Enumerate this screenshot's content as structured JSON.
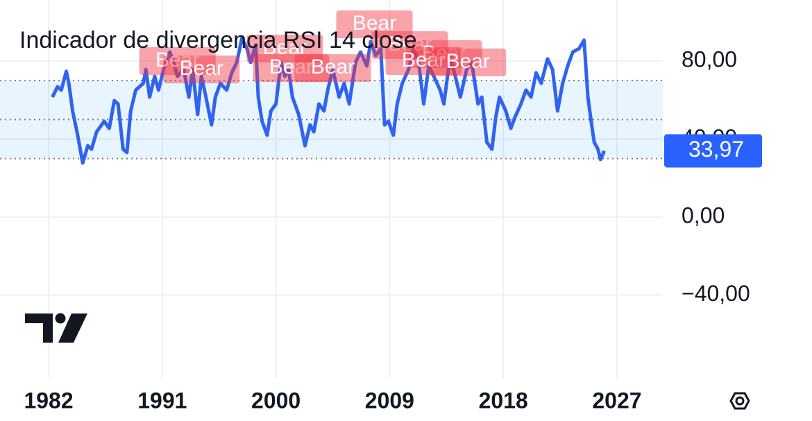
{
  "chart_data": {
    "type": "line",
    "title": "Indicador de divergencia RSI 14 close",
    "x": [
      1982.3,
      1982.7,
      1983.0,
      1983.4,
      1983.6,
      1983.9,
      1984.3,
      1984.7,
      1985.1,
      1985.4,
      1985.8,
      1986.4,
      1986.8,
      1987.2,
      1987.5,
      1987.9,
      1988.2,
      1988.5,
      1988.9,
      1989.5,
      1989.7,
      1990.0,
      1990.4,
      1990.7,
      1991.1,
      1991.6,
      1991.9,
      1992.2,
      1992.7,
      1993.1,
      1993.4,
      1993.8,
      1994.1,
      1994.4,
      1994.9,
      1995.2,
      1995.6,
      1996.1,
      1996.5,
      1996.9,
      1997.3,
      1997.7,
      1998.0,
      1998.4,
      1998.6,
      1998.9,
      1999.3,
      1999.6,
      2000.0,
      2000.4,
      2000.7,
      2001.0,
      2001.3,
      2001.8,
      2002.3,
      2002.7,
      2003.0,
      2003.4,
      2003.8,
      2004.1,
      2004.5,
      2005.0,
      2005.4,
      2005.8,
      2006.3,
      2006.7,
      2007.2,
      2007.5,
      2007.9,
      2008.3,
      2008.6,
      2008.9,
      2009.3,
      2009.6,
      2010.0,
      2010.5,
      2010.9,
      2011.3,
      2011.7,
      2012.1,
      2012.5,
      2013.0,
      2013.3,
      2013.8,
      2014.2,
      2014.6,
      2015.1,
      2015.5,
      2016.0,
      2016.3,
      2016.7,
      2017.1,
      2017.4,
      2017.7,
      2018.2,
      2018.6,
      2018.9,
      2019.4,
      2019.8,
      2020.2,
      2020.6,
      2021.0,
      2021.5,
      2021.9,
      2022.3,
      2022.7,
      2023.1,
      2023.5,
      2024.0,
      2024.4,
      2024.7,
      2025.0,
      2025.2,
      2025.5,
      2025.7,
      2026.0
    ],
    "series": [
      {
        "color": "#2f63f0",
        "values": [
          61.5,
          66.8,
          65.1,
          74.7,
          68.6,
          54.4,
          42.0,
          27.7,
          36.6,
          34.8,
          43.7,
          49.1,
          45.5,
          59.7,
          58.0,
          34.8,
          33.1,
          54.4,
          65.1,
          68.6,
          75.7,
          61.5,
          72.2,
          65.1,
          75.7,
          84.6,
          79.3,
          72.2,
          75.7,
          61.5,
          75.7,
          52.6,
          72.2,
          63.3,
          47.3,
          61.5,
          68.6,
          65.1,
          74.0,
          79.3,
          91.7,
          86.4,
          79.3,
          88.2,
          61.5,
          49.1,
          42.0,
          54.4,
          58.0,
          79.3,
          72.2,
          75.7,
          61.5,
          52.6,
          36.6,
          47.3,
          43.7,
          58.0,
          54.4,
          65.1,
          75.7,
          61.5,
          68.6,
          58.0,
          79.3,
          84.6,
          77.5,
          90.0,
          82.8,
          86.4,
          47.3,
          49.1,
          42.0,
          58.0,
          68.6,
          75.7,
          86.4,
          79.3,
          58.0,
          77.5,
          72.2,
          65.1,
          58.0,
          82.8,
          72.2,
          61.5,
          75.7,
          79.3,
          58.0,
          61.5,
          38.4,
          34.8,
          50.8,
          61.5,
          54.4,
          45.5,
          50.8,
          58.0,
          65.1,
          61.5,
          74.0,
          68.6,
          81.1,
          75.7,
          54.4,
          68.6,
          77.5,
          84.6,
          86.4,
          90.7,
          61.5,
          47.3,
          38.4,
          34.8,
          29.5,
          33.97
        ]
      }
    ],
    "last_value": {
      "value": 33.97,
      "label": "33,97"
    },
    "xlim": [
      1978.15,
      2030.63
    ],
    "xticks": [
      1982,
      1991,
      2000,
      2009,
      2018,
      2027
    ],
    "ylim": [
      111.3,
      -82.5
    ],
    "yticks": [
      {
        "value": 80,
        "label": "80,00"
      },
      {
        "value": 40,
        "label": "40,00"
      },
      {
        "value": 0,
        "label": "0,00"
      },
      {
        "value": -40,
        "label": "−40,00"
      }
    ],
    "band": [
      30,
      70
    ],
    "levels": [
      30,
      50,
      70
    ],
    "grid": true,
    "annotations": [
      {
        "text": "Bear",
        "x": 1992.2,
        "y": 80.0
      },
      {
        "text": "Bear",
        "x": 1994.1,
        "y": 75.7
      },
      {
        "text": "Bear",
        "x": 2000.7,
        "y": 86.4
      },
      {
        "text": "Bear",
        "x": 2001.2,
        "y": 76.4
      },
      {
        "text": "Bear",
        "x": 2004.5,
        "y": 76.4
      },
      {
        "text": "Bear",
        "x": 2007.8,
        "y": 98.8
      },
      {
        "text": "Bear",
        "x": 2010.6,
        "y": 88.2
      },
      {
        "text": "Bear",
        "x": 2013.3,
        "y": 83.6
      },
      {
        "text": "Bear",
        "x": 2011.7,
        "y": 80.0
      },
      {
        "text": "Bear",
        "x": 2015.2,
        "y": 79.3
      }
    ],
    "annotation_color": "#f23645"
  }
}
